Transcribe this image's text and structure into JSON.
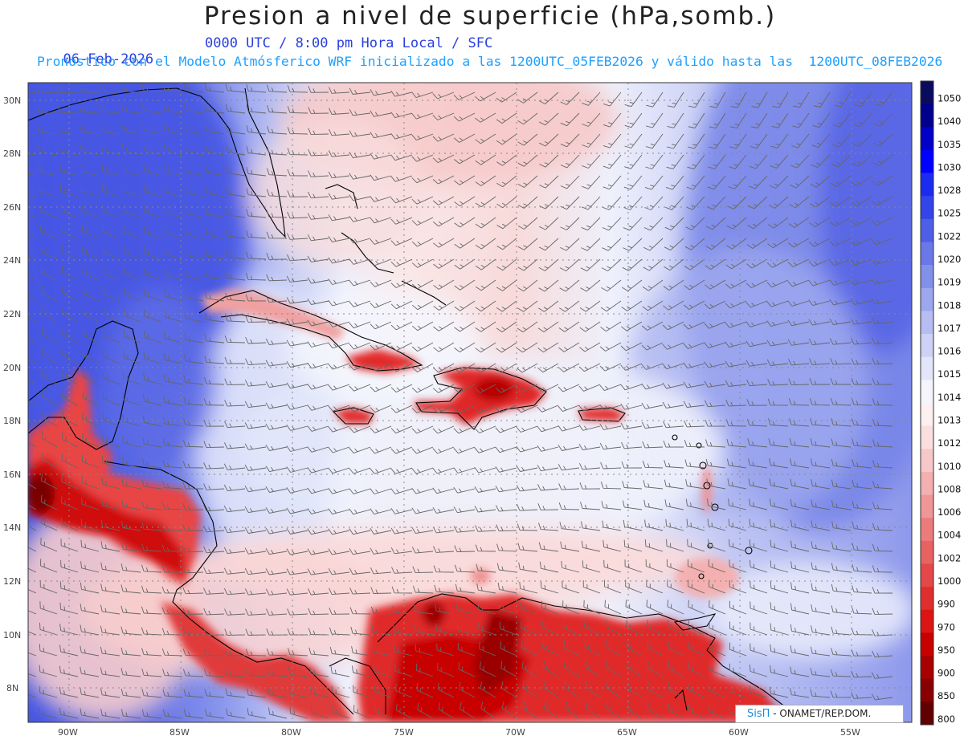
{
  "title": "Presion a nivel de superficie (hPa,somb.)",
  "date": "06-Feb-2026",
  "time_info": "0000 UTC / 8:00 pm Hora Local / SFC",
  "model_info": "Pronóstico con el Modelo Atmósferico WRF inicializado a las 1200UTC_05FEB2026 y válido hasta las  1200UTC_08FEB2026",
  "lat_labels": [
    "30N",
    "28N",
    "26N",
    "24N",
    "22N",
    "20N",
    "18N",
    "16N",
    "14N",
    "12N",
    "10N",
    "8N"
  ],
  "lon_labels": [
    "90W",
    "85W",
    "80W",
    "75W",
    "70W",
    "65W",
    "60W",
    "55W"
  ],
  "colorbar": {
    "labels": [
      "1050",
      "1040",
      "1035",
      "1030",
      "1028",
      "1025",
      "1022",
      "1020",
      "1019",
      "1018",
      "1017",
      "1016",
      "1015",
      "1014",
      "1013",
      "1012",
      "1010",
      "1008",
      "1006",
      "1004",
      "1002",
      "1000",
      "990",
      "970",
      "950",
      "900",
      "850",
      "800"
    ],
    "colors": [
      "#0b0b5e",
      "#00008c",
      "#0000c8",
      "#0000ff",
      "#1a2cf0",
      "#3344e8",
      "#4e5ee6",
      "#6a78e8",
      "#8390ea",
      "#9ca7ee",
      "#b5bdf2",
      "#cdd2f6",
      "#e3e6fa",
      "#f4f5fd",
      "#fdf0f0",
      "#fbdede",
      "#f7c8c8",
      "#f4b0b0",
      "#f09696",
      "#ec7c7c",
      "#e86262",
      "#e44848",
      "#e02e2e",
      "#dc1414",
      "#c80000",
      "#a80000",
      "#880000",
      "#600000"
    ]
  },
  "credit": {
    "logo": "SisΠ",
    "text": "- ONAMET/REP.DOM."
  }
}
